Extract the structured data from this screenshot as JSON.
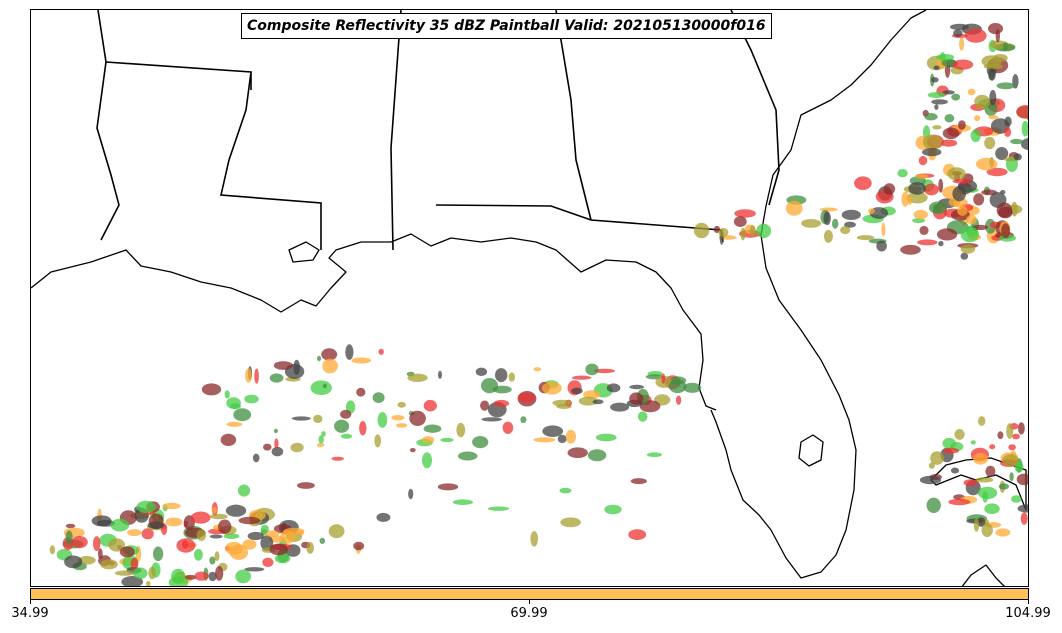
{
  "title": "Composite Reflectivity 35 dBZ Paintball Valid: 202105130000f016",
  "colorbar": {
    "color": "#ffc05a",
    "ticks": [
      "34.99",
      "69.99",
      "104.99"
    ]
  },
  "palette": {
    "red": "#ee3333",
    "orange": "#ffaa33",
    "olive": "#a8a030",
    "green": "#44cc44",
    "darkgreen": "#3f8f3f",
    "brown": "#8a2a2a",
    "gray": "#444444",
    "coast": "#000000"
  }
}
